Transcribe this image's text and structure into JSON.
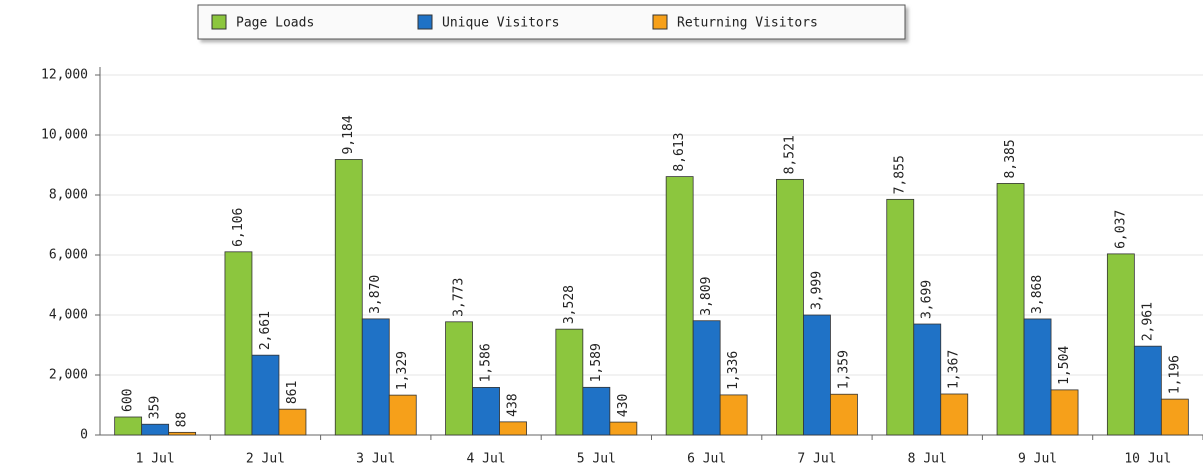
{
  "chart_data": {
    "type": "bar",
    "categories": [
      "1 Jul",
      "2 Jul",
      "3 Jul",
      "4 Jul",
      "5 Jul",
      "6 Jul",
      "7 Jul",
      "8 Jul",
      "9 Jul",
      "10 Jul"
    ],
    "series": [
      {
        "name": "Page Loads",
        "color": "#8cc63e",
        "values": [
          600,
          6106,
          9184,
          3773,
          3528,
          8613,
          8521,
          7855,
          8385,
          6037
        ],
        "value_labels": [
          "600",
          "6,106",
          "9,184",
          "3,773",
          "3,528",
          "8,613",
          "8,521",
          "7,855",
          "8,385",
          "6,037"
        ]
      },
      {
        "name": "Unique Visitors",
        "color": "#1f72c6",
        "values": [
          359,
          2661,
          3870,
          1586,
          1589,
          3809,
          3999,
          3699,
          3868,
          2961
        ],
        "value_labels": [
          "359",
          "2,661",
          "3,870",
          "1,586",
          "1,589",
          "3,809",
          "3,999",
          "3,699",
          "3,868",
          "2,961"
        ]
      },
      {
        "name": "Returning Visitors",
        "color": "#f6a01a",
        "values": [
          88,
          861,
          1329,
          438,
          430,
          1336,
          1359,
          1367,
          1504,
          1196
        ],
        "value_labels": [
          "88",
          "861",
          "1,329",
          "438",
          "430",
          "1,336",
          "1,359",
          "1,367",
          "1,504",
          "1,196"
        ]
      }
    ],
    "ylim": [
      0,
      12000
    ],
    "yticks": [
      0,
      {
        "value": 2000,
        "label": "2,000"
      },
      {
        "value": 4000,
        "label": "4,000"
      },
      {
        "value": 6000,
        "label": "6,000"
      },
      {
        "value": 8000,
        "label": "8,000"
      },
      {
        "value": 10000,
        "label": "10,000"
      },
      {
        "value": 12000,
        "label": "12,000"
      }
    ],
    "grid": true,
    "legend": "top"
  }
}
